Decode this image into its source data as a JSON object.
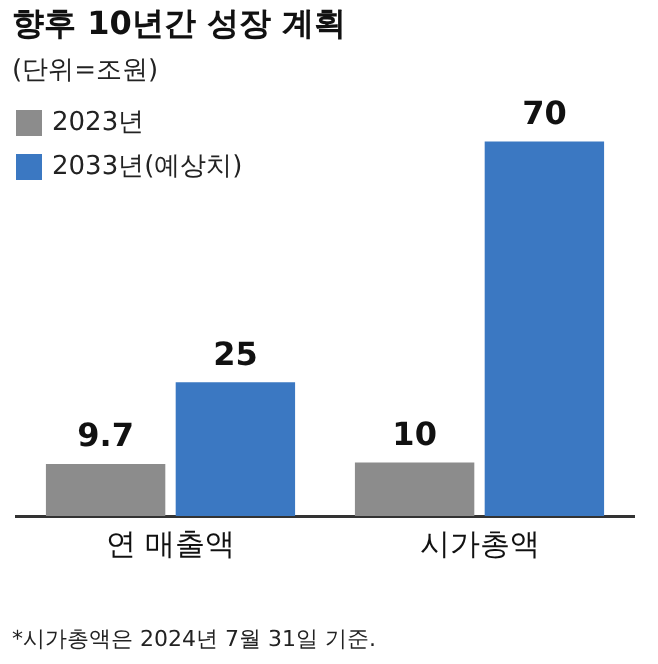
{
  "chart_data": {
    "type": "bar",
    "title": "향후 10년간 성장 계획",
    "subtitle": "(단위=조원)",
    "categories": [
      "연 매출액",
      "시가총액"
    ],
    "series": [
      {
        "name": "2023년",
        "color": "#8c8c8c",
        "values": [
          9.7,
          10
        ]
      },
      {
        "name": "2033년(예상치)",
        "color": "#3b78c2",
        "values": [
          25,
          70
        ]
      }
    ],
    "data_labels": true,
    "legend": "top left",
    "grid": false,
    "annotations": [
      "*시가총액은 2024년 7월 31일 기준."
    ]
  }
}
